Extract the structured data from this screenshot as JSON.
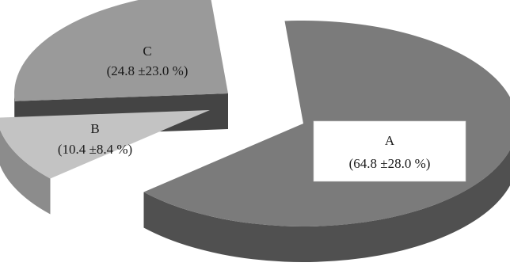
{
  "chart_data": {
    "type": "pie",
    "style": "3d-exploded",
    "title": "",
    "categories": [
      "A",
      "B",
      "C"
    ],
    "values": [
      64.8,
      10.4,
      24.8
    ],
    "sd": [
      28.0,
      8.4,
      23.0
    ],
    "labels": [
      "(64.8 ±28.0 %)",
      "(10.4 ±8.4 %)",
      "(24.8 ±23.0 %)"
    ],
    "legend": "none",
    "colors": {
      "A_top": "#7b7b7b",
      "A_side": "#505050",
      "B_top": "#c3c3c3",
      "B_side": "#8c8c8c",
      "C_top": "#9a9a9a",
      "C_side": "#5c5c5c"
    }
  }
}
